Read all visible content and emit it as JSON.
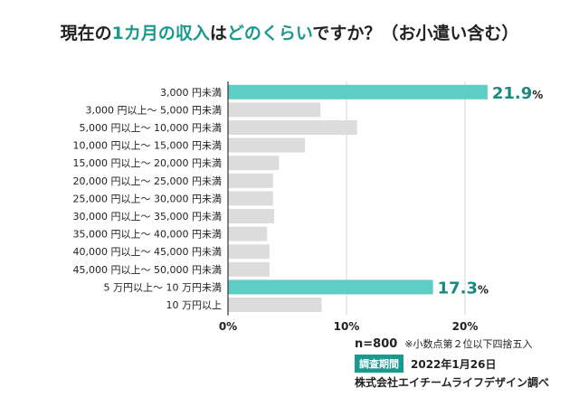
{
  "title": {
    "part1": "現在の",
    "part2": "1カ月の収入",
    "part3": "は",
    "part4": "どのくらい",
    "part5": "ですか？（お小遣い含む）"
  },
  "colors": {
    "highlight": "#5ecec4",
    "normal": "#dcdcdc",
    "accent_text": "#1a8a80",
    "title_accent": "#1a9a8f"
  },
  "chart_data": {
    "type": "bar",
    "orientation": "horizontal",
    "title": "現在の1カ月の収入はどのくらいですか？（お小遣い含む）",
    "categories": [
      "3,000 円未満",
      "3,000 円以上～ 5,000 円未満",
      "5,000 円以上～ 10,000 円未満",
      "10,000 円以上～ 15,000 円未満",
      "15,000 円以上～ 20,000 円未満",
      "20,000 円以上～ 25,000 円未満",
      "25,000 円以上～ 30,000 円未満",
      "30,000 円以上～ 35,000 円未満",
      "35,000 円以上～ 40,000 円未満",
      "40,000 円以上～ 45,000 円未満",
      "45,000 円以上～ 50,000 円未満",
      "5 万円以上～ 10 万円未満",
      "10 万円以上"
    ],
    "values": [
      21.9,
      7.8,
      10.9,
      6.5,
      4.3,
      3.8,
      3.8,
      3.9,
      3.3,
      3.5,
      3.5,
      17.3,
      7.9
    ],
    "highlighted": [
      true,
      false,
      false,
      false,
      false,
      false,
      false,
      false,
      false,
      false,
      false,
      true,
      false
    ],
    "data_labels": [
      {
        "index": 0,
        "number": "21.9",
        "unit": "%"
      },
      {
        "index": 11,
        "number": "17.3",
        "unit": "%"
      }
    ],
    "xlim": [
      0,
      25
    ],
    "xticks": [
      0,
      10,
      20
    ],
    "xtick_labels": [
      "0%",
      "10%",
      "20%"
    ],
    "grid": true
  },
  "footer": {
    "n": "n=800",
    "rounding_note": "※小数点第２位以下四捨五入",
    "survey_badge": "調査期間",
    "survey_date": "2022年1月26日",
    "source": "株式会社エイチームライフデザイン調べ"
  }
}
